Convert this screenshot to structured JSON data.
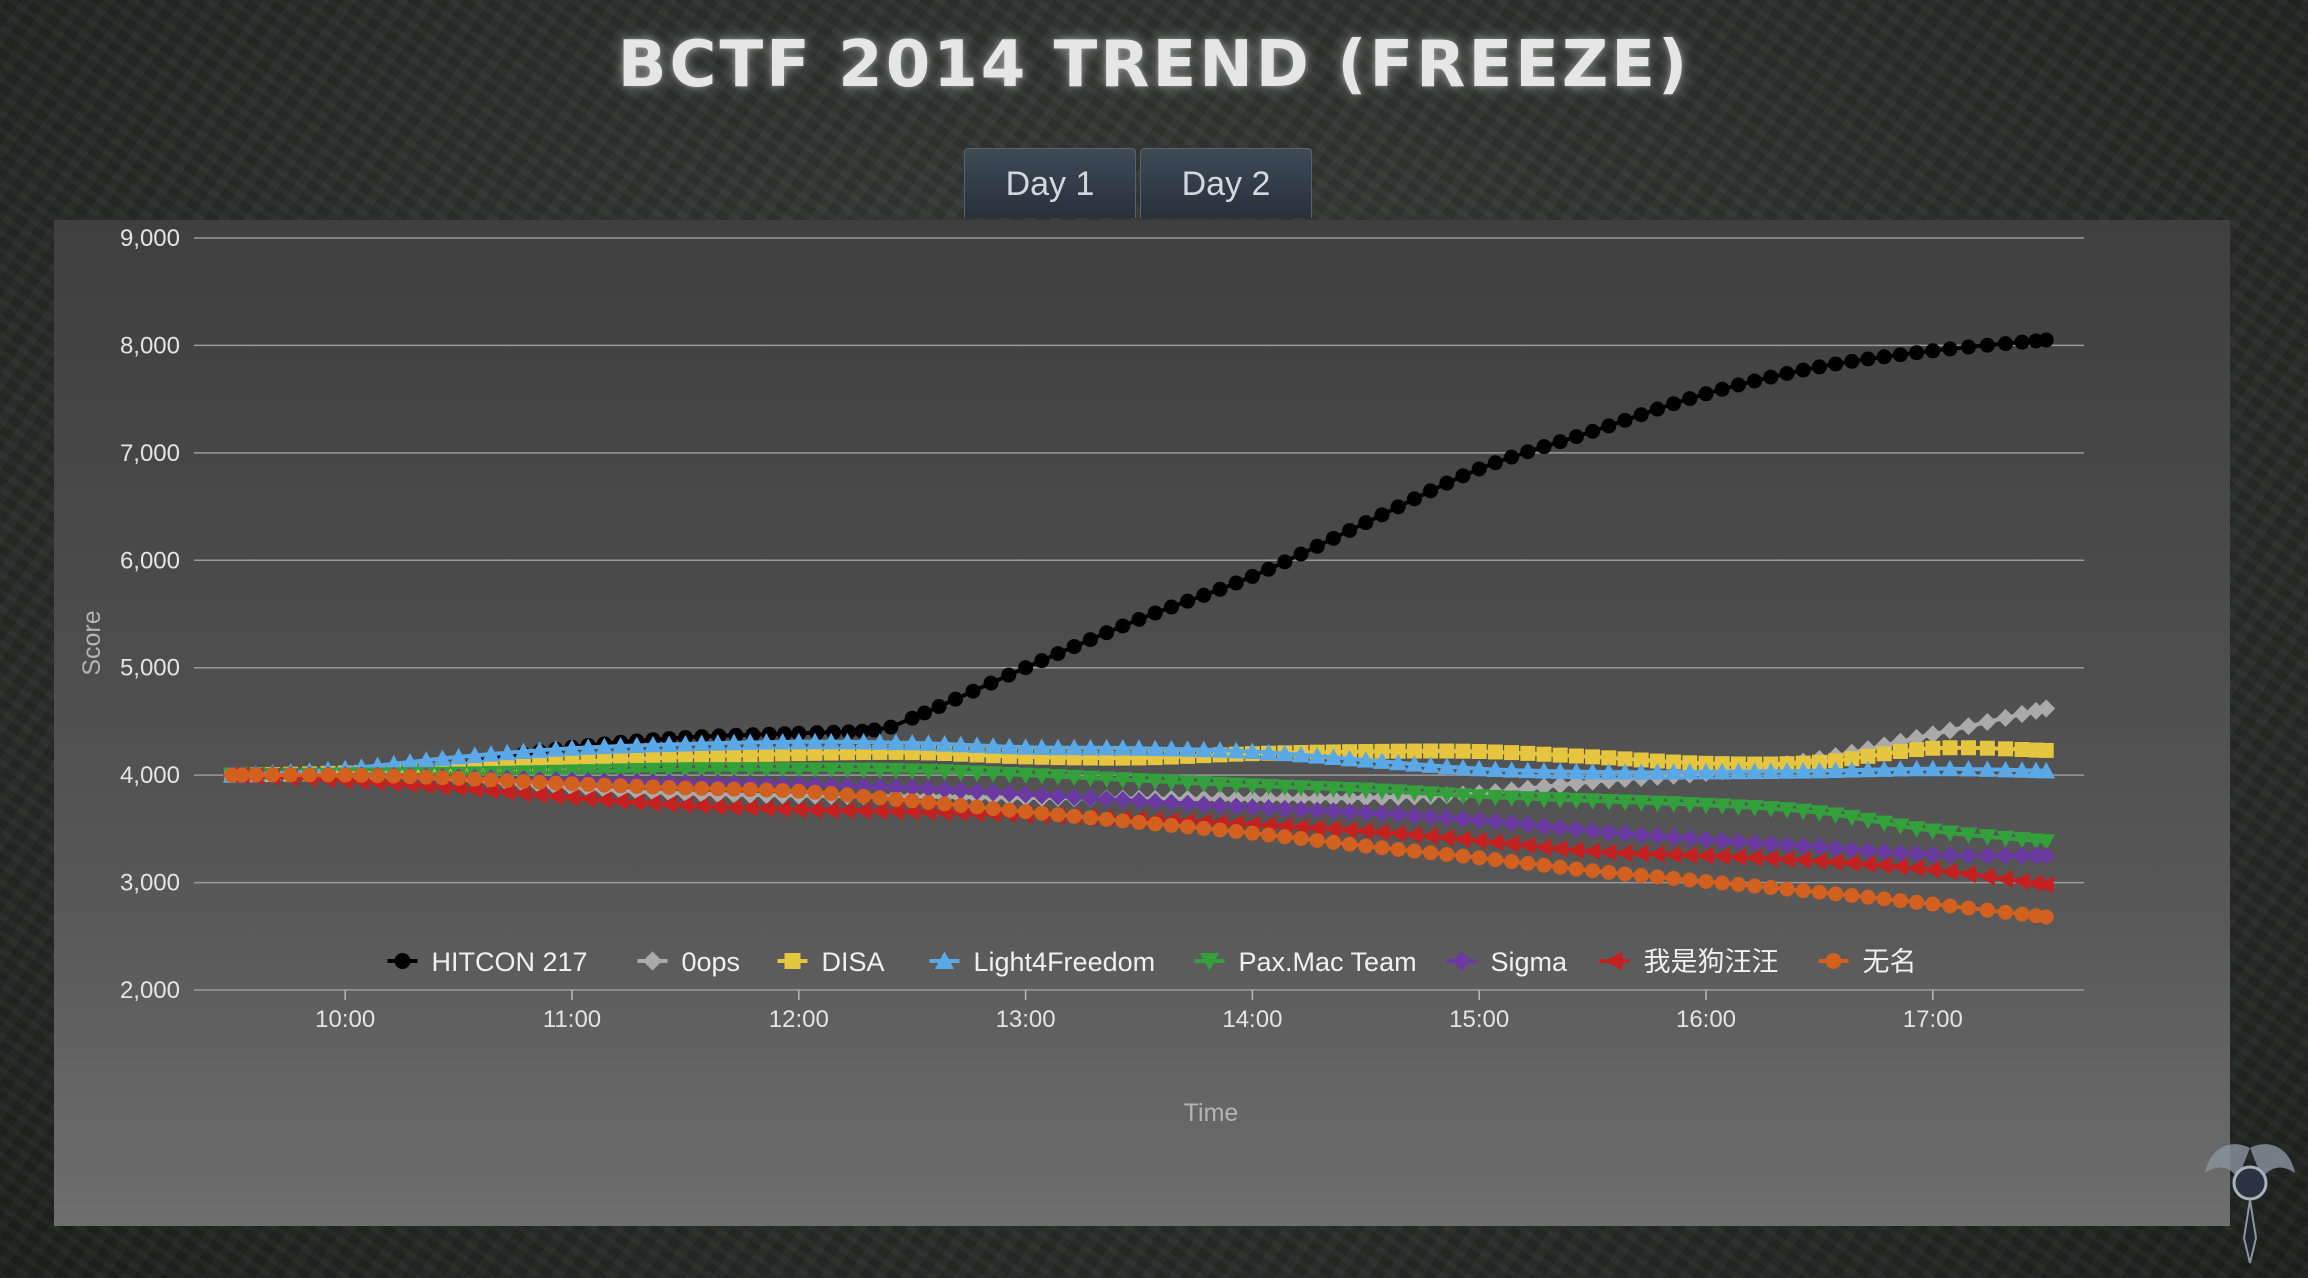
{
  "page": {
    "title": "BCTF 2014 TREND (FREEZE)"
  },
  "tabs": [
    {
      "label": "Day 1"
    },
    {
      "label": "Day 2"
    }
  ],
  "chart_data": {
    "type": "line",
    "title": "BCTF 2014 TREND (FREEZE)",
    "xlabel": "Time",
    "ylabel": "Score",
    "x_ticks": [
      "10:00",
      "11:00",
      "12:00",
      "13:00",
      "14:00",
      "15:00",
      "16:00",
      "17:00"
    ],
    "y_ticks": [
      "2,000",
      "3,000",
      "4,000",
      "5,000",
      "6,000",
      "7,000",
      "8,000",
      "9,000"
    ],
    "xlim": [
      "09:20",
      "17:40"
    ],
    "ylim": [
      2000,
      9000
    ],
    "grid": true,
    "legend_position": "bottom",
    "series": [
      {
        "name": "HITCON 217",
        "color": "#000000",
        "marker": "circle",
        "points": [
          [
            "09:30",
            4000
          ],
          [
            "10:00",
            4020
          ],
          [
            "10:30",
            4110
          ],
          [
            "11:00",
            4260
          ],
          [
            "11:30",
            4350
          ],
          [
            "12:00",
            4390
          ],
          [
            "12:20",
            4420
          ],
          [
            "12:30",
            4530
          ],
          [
            "13:00",
            5000
          ],
          [
            "13:30",
            5450
          ],
          [
            "14:00",
            5850
          ],
          [
            "14:30",
            6350
          ],
          [
            "15:00",
            6850
          ],
          [
            "15:30",
            7200
          ],
          [
            "16:00",
            7550
          ],
          [
            "16:30",
            7800
          ],
          [
            "17:00",
            7950
          ],
          [
            "17:30",
            8050
          ]
        ]
      },
      {
        "name": "0ops",
        "color": "#aaaaaa",
        "marker": "diamond",
        "points": [
          [
            "09:30",
            4000
          ],
          [
            "10:00",
            4000
          ],
          [
            "10:30",
            3960
          ],
          [
            "11:00",
            3880
          ],
          [
            "11:30",
            3830
          ],
          [
            "12:00",
            3810
          ],
          [
            "12:30",
            3800
          ],
          [
            "13:00",
            3790
          ],
          [
            "13:30",
            3780
          ],
          [
            "14:00",
            3780
          ],
          [
            "14:30",
            3790
          ],
          [
            "15:00",
            3830
          ],
          [
            "15:30",
            3940
          ],
          [
            "16:00",
            4020
          ],
          [
            "16:30",
            4150
          ],
          [
            "17:00",
            4380
          ],
          [
            "17:30",
            4620
          ]
        ]
      },
      {
        "name": "DISA",
        "color": "#e6c53f",
        "marker": "square",
        "points": [
          [
            "09:30",
            4000
          ],
          [
            "10:00",
            4020
          ],
          [
            "10:30",
            4060
          ],
          [
            "11:00",
            4120
          ],
          [
            "11:30",
            4170
          ],
          [
            "12:00",
            4200
          ],
          [
            "12:30",
            4210
          ],
          [
            "13:00",
            4170
          ],
          [
            "13:30",
            4160
          ],
          [
            "14:00",
            4200
          ],
          [
            "14:30",
            4220
          ],
          [
            "15:00",
            4220
          ],
          [
            "15:30",
            4170
          ],
          [
            "16:00",
            4110
          ],
          [
            "16:30",
            4120
          ],
          [
            "17:00",
            4250
          ],
          [
            "17:30",
            4230
          ]
        ]
      },
      {
        "name": "Light4Freedom",
        "color": "#5aa8e6",
        "marker": "triangle",
        "points": [
          [
            "09:30",
            4000
          ],
          [
            "10:00",
            4060
          ],
          [
            "10:30",
            4170
          ],
          [
            "11:00",
            4250
          ],
          [
            "11:30",
            4290
          ],
          [
            "12:00",
            4310
          ],
          [
            "12:30",
            4300
          ],
          [
            "13:00",
            4260
          ],
          [
            "13:30",
            4250
          ],
          [
            "14:00",
            4220
          ],
          [
            "14:30",
            4140
          ],
          [
            "15:00",
            4060
          ],
          [
            "15:30",
            4030
          ],
          [
            "16:00",
            4030
          ],
          [
            "16:30",
            4040
          ],
          [
            "17:00",
            4060
          ],
          [
            "17:30",
            4040
          ]
        ]
      },
      {
        "name": "Pax.Mac Team",
        "color": "#34a03c",
        "marker": "triangle-down",
        "points": [
          [
            "09:30",
            4000
          ],
          [
            "10:00",
            4000
          ],
          [
            "10:30",
            4010
          ],
          [
            "11:00",
            4030
          ],
          [
            "11:30",
            4050
          ],
          [
            "12:00",
            4050
          ],
          [
            "12:30",
            4040
          ],
          [
            "13:00",
            4000
          ],
          [
            "13:30",
            3950
          ],
          [
            "14:00",
            3900
          ],
          [
            "14:30",
            3860
          ],
          [
            "15:00",
            3800
          ],
          [
            "15:30",
            3760
          ],
          [
            "16:00",
            3720
          ],
          [
            "16:30",
            3650
          ],
          [
            "17:00",
            3480
          ],
          [
            "17:30",
            3380
          ]
        ]
      },
      {
        "name": "Sigma",
        "color": "#6a3aa2",
        "marker": "diamond",
        "points": [
          [
            "09:30",
            4000
          ],
          [
            "10:00",
            4000
          ],
          [
            "10:30",
            3980
          ],
          [
            "11:00",
            3950
          ],
          [
            "11:30",
            3930
          ],
          [
            "12:00",
            3910
          ],
          [
            "12:30",
            3880
          ],
          [
            "13:00",
            3820
          ],
          [
            "13:30",
            3760
          ],
          [
            "14:00",
            3700
          ],
          [
            "14:30",
            3650
          ],
          [
            "15:00",
            3580
          ],
          [
            "15:30",
            3480
          ],
          [
            "16:00",
            3400
          ],
          [
            "16:30",
            3330
          ],
          [
            "17:00",
            3260
          ],
          [
            "17:30",
            3250
          ]
        ]
      },
      {
        "name": "我是狗汪汪",
        "color": "#c42020",
        "marker": "triangle-left",
        "points": [
          [
            "09:30",
            4000
          ],
          [
            "10:00",
            3950
          ],
          [
            "10:30",
            3880
          ],
          [
            "11:00",
            3790
          ],
          [
            "11:30",
            3720
          ],
          [
            "12:00",
            3680
          ],
          [
            "12:30",
            3660
          ],
          [
            "13:00",
            3630
          ],
          [
            "13:30",
            3590
          ],
          [
            "14:00",
            3540
          ],
          [
            "14:30",
            3480
          ],
          [
            "15:00",
            3390
          ],
          [
            "15:30",
            3290
          ],
          [
            "16:00",
            3250
          ],
          [
            "16:30",
            3200
          ],
          [
            "17:00",
            3120
          ],
          [
            "17:30",
            2980
          ]
        ]
      },
      {
        "name": "无名",
        "color": "#d2601e",
        "marker": "circle",
        "points": [
          [
            "09:30",
            4000
          ],
          [
            "10:00",
            4000
          ],
          [
            "10:30",
            3970
          ],
          [
            "11:00",
            3920
          ],
          [
            "11:30",
            3880
          ],
          [
            "12:00",
            3850
          ],
          [
            "12:30",
            3760
          ],
          [
            "13:00",
            3660
          ],
          [
            "13:30",
            3560
          ],
          [
            "14:00",
            3460
          ],
          [
            "14:30",
            3340
          ],
          [
            "15:00",
            3230
          ],
          [
            "15:30",
            3110
          ],
          [
            "16:00",
            3010
          ],
          [
            "16:30",
            2910
          ],
          [
            "17:00",
            2800
          ],
          [
            "17:30",
            2680
          ]
        ]
      }
    ]
  }
}
